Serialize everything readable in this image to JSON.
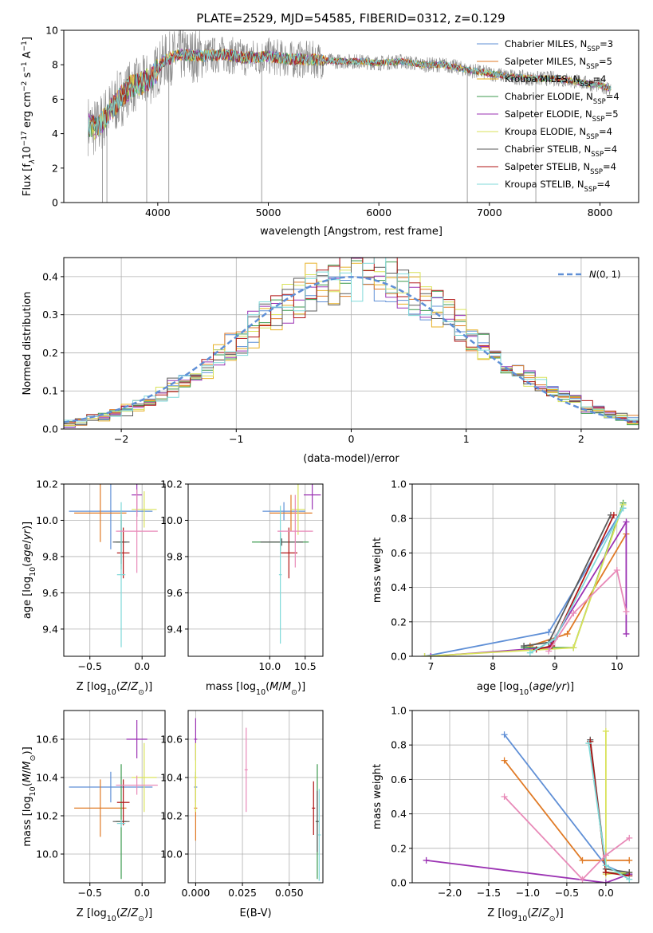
{
  "title": "PLATE=2529, MJD=54585, FIBERID=0312, z=0.129",
  "colors": {
    "chabrier_miles": "#5f8fd6",
    "salpeter_miles": "#e07a25",
    "kroupa_miles": "#e8b023",
    "chabrier_elodie": "#3d9a4f",
    "salpeter_elodie": "#9b32b3",
    "kroupa_elodie": "#d9e25a",
    "chabrier_stelib": "#5a5a5a",
    "salpeter_stelib": "#b01515",
    "kroupa_stelib": "#7fd9d9",
    "data": "#888888",
    "pink": "#e88ab8",
    "normal": "#5f8fd6"
  },
  "chart_data": [
    {
      "id": "spectrum",
      "type": "line",
      "xlabel": "wavelength [Angstrom, rest frame]",
      "ylabel": "Flux [f_λ 10^-17 erg cm^-2 s^-1 A^-1]",
      "xlim": [
        3150,
        8350
      ],
      "ylim": [
        0,
        10
      ],
      "xticks": [
        4000,
        5000,
        6000,
        7000,
        8000
      ],
      "yticks": [
        0,
        2,
        4,
        6,
        8,
        10
      ],
      "legend_position": "top-right",
      "legend": [
        {
          "base": "Chabrier MILES, N",
          "sub": "SSP",
          "tail": "=3",
          "color": "#5f8fd6"
        },
        {
          "base": "Salpeter MILES, N",
          "sub": "SSP",
          "tail": "=5",
          "color": "#e07a25"
        },
        {
          "base": "Kroupa MILES, N",
          "sub": "SSP",
          "tail": "=4",
          "color": "#e8b023"
        },
        {
          "base": "Chabrier ELODIE, N",
          "sub": "SSP",
          "tail": "=4",
          "color": "#3d9a4f"
        },
        {
          "base": "Salpeter ELODIE, N",
          "sub": "SSP",
          "tail": "=5",
          "color": "#9b32b3"
        },
        {
          "base": "Kroupa ELODIE, N",
          "sub": "SSP",
          "tail": "=4",
          "color": "#d9e25a"
        },
        {
          "base": "Chabrier STELIB, N",
          "sub": "SSP",
          "tail": "=4",
          "color": "#5a5a5a"
        },
        {
          "base": "Salpeter STELIB, N",
          "sub": "SSP",
          "tail": "=4",
          "color": "#b01515"
        },
        {
          "base": "Kroupa STELIB, N",
          "sub": "SSP",
          "tail": "=4",
          "color": "#7fd9d9"
        }
      ],
      "continuum": [
        [
          3370,
          4.5
        ],
        [
          3450,
          4.3
        ],
        [
          3550,
          5.2
        ],
        [
          3650,
          6.0
        ],
        [
          3750,
          6.7
        ],
        [
          3850,
          6.9
        ],
        [
          3950,
          7.3
        ],
        [
          4050,
          8.2
        ],
        [
          4200,
          8.6
        ],
        [
          4400,
          8.5
        ],
        [
          4600,
          8.6
        ],
        [
          4800,
          8.4
        ],
        [
          5000,
          8.5
        ],
        [
          5200,
          8.3
        ],
        [
          5400,
          8.3
        ],
        [
          5600,
          8.2
        ],
        [
          5800,
          8.2
        ],
        [
          6000,
          8.1
        ],
        [
          6200,
          8.2
        ],
        [
          6400,
          8.0
        ],
        [
          6600,
          8.0
        ],
        [
          6800,
          7.7
        ],
        [
          7000,
          7.5
        ],
        [
          7200,
          7.3
        ],
        [
          7400,
          7.2
        ],
        [
          7600,
          7.2
        ],
        [
          7800,
          7.0
        ],
        [
          8000,
          6.8
        ],
        [
          8100,
          6.6
        ]
      ]
    },
    {
      "id": "residuals",
      "type": "histogram",
      "xlabel": "(data-model)/error",
      "ylabel": "Normed distribution",
      "xlim": [
        -2.5,
        2.5
      ],
      "ylim": [
        0,
        0.45
      ],
      "xticks": [
        -2,
        -1,
        0,
        1,
        2
      ],
      "yticks": [
        0.0,
        0.1,
        0.2,
        0.3,
        0.4
      ],
      "bin_width": 0.1,
      "legend": "N(0,1)",
      "legend_position": "top-right",
      "reference_curve": "standard normal density"
    },
    {
      "id": "age_vs_Z",
      "type": "scatter",
      "xlabel": "Z [log10(Z/Z⊙)]",
      "ylabel": "age [log10(age/yr)]",
      "xlim": [
        -0.75,
        0.22
      ],
      "ylim": [
        9.25,
        10.2
      ],
      "xticks": [
        -0.5,
        0.0
      ],
      "yticks": [
        9.4,
        9.6,
        9.8,
        10.0,
        10.2
      ],
      "points": [
        {
          "x": -0.3,
          "xerr": 0.4,
          "y": 10.05,
          "yerr": 0.21,
          "color": "#5f8fd6"
        },
        {
          "x": -0.4,
          "xerr": 0.25,
          "y": 10.04,
          "yerr": 0.16,
          "color": "#e07a25"
        },
        {
          "x": -0.2,
          "xerr": 0.05,
          "y": 9.88,
          "yerr": 0.15,
          "color": "#3d9a4f"
        },
        {
          "x": -0.05,
          "xerr": 0.05,
          "y": 10.14,
          "yerr": 0.12,
          "color": "#9b32b3"
        },
        {
          "x": 0.02,
          "xerr": 0.12,
          "y": 10.06,
          "yerr": 0.1,
          "color": "#d9e25a"
        },
        {
          "x": -0.2,
          "xerr": 0.08,
          "y": 9.88,
          "yerr": 0.12,
          "color": "#5a5a5a"
        },
        {
          "x": -0.18,
          "xerr": 0.06,
          "y": 9.82,
          "yerr": 0.14,
          "color": "#b01515"
        },
        {
          "x": -0.2,
          "xerr": 0.04,
          "y": 9.7,
          "yerr": 0.4,
          "color": "#7fd9d9"
        },
        {
          "x": -0.05,
          "xerr": 0.2,
          "y": 9.94,
          "yerr": 0.23,
          "color": "#e88ab8"
        }
      ]
    },
    {
      "id": "age_vs_mass",
      "type": "scatter",
      "xlabel": "mass [log10(M/M⊙)]",
      "ylabel": "",
      "xlim": [
        8.85,
        10.75
      ],
      "ylim": [
        9.25,
        10.2
      ],
      "xticks": [
        10.0,
        10.5
      ],
      "yticks": [
        9.4,
        9.6,
        9.8,
        10.0,
        10.2
      ],
      "points": [
        {
          "x": 10.2,
          "xerr": 0.3,
          "y": 10.05,
          "yerr": 0.05,
          "color": "#5f8fd6"
        },
        {
          "x": 10.3,
          "xerr": 0.3,
          "y": 10.04,
          "yerr": 0.1,
          "color": "#e07a25"
        },
        {
          "x": 10.15,
          "xerr": 0.4,
          "y": 9.88,
          "yerr": 0.05,
          "color": "#3d9a4f"
        },
        {
          "x": 10.6,
          "xerr": 0.12,
          "y": 10.14,
          "yerr": 0.08,
          "color": "#9b32b3"
        },
        {
          "x": 10.4,
          "xerr": 0.1,
          "y": 10.06,
          "yerr": 0.14,
          "color": "#d9e25a"
        },
        {
          "x": 10.17,
          "xerr": 0.3,
          "y": 9.88,
          "yerr": 0.02,
          "color": "#5a5a5a"
        },
        {
          "x": 10.27,
          "xerr": 0.12,
          "y": 9.82,
          "yerr": 0.14,
          "color": "#b01515"
        },
        {
          "x": 10.15,
          "xerr": 0.02,
          "y": 9.7,
          "yerr": 0.38,
          "color": "#7fd9d9"
        },
        {
          "x": 10.36,
          "xerr": 0.25,
          "y": 9.94,
          "yerr": 0.2,
          "color": "#e88ab8"
        }
      ]
    },
    {
      "id": "weight_vs_age",
      "type": "line",
      "xlabel": "age [log10(age/yr)]",
      "ylabel": "mass weight",
      "xlim": [
        6.7,
        10.35
      ],
      "ylim": [
        0,
        1
      ],
      "xticks": [
        7,
        8,
        9,
        10
      ],
      "yticks": [
        0.0,
        0.2,
        0.4,
        0.6,
        0.8,
        1.0
      ],
      "series": [
        {
          "color": "#5f8fd6",
          "points": [
            [
              6.9,
              0.0
            ],
            [
              8.9,
              0.14
            ],
            [
              10.1,
              0.86
            ]
          ]
        },
        {
          "color": "#e07a25",
          "points": [
            [
              8.6,
              0.06
            ],
            [
              9.2,
              0.13
            ],
            [
              10.15,
              0.71
            ]
          ]
        },
        {
          "color": "#3d9a4f",
          "points": [
            [
              8.5,
              0.05
            ],
            [
              9.3,
              0.05
            ],
            [
              10.1,
              0.89
            ]
          ]
        },
        {
          "color": "#9b32b3",
          "points": [
            [
              7.0,
              0.0
            ],
            [
              8.9,
              0.05
            ],
            [
              10.15,
              0.78
            ],
            [
              10.15,
              0.13
            ]
          ]
        },
        {
          "color": "#d9e25a",
          "points": [
            [
              6.9,
              0.0
            ],
            [
              9.3,
              0.05
            ],
            [
              10.1,
              0.88
            ]
          ]
        },
        {
          "color": "#5a5a5a",
          "points": [
            [
              8.5,
              0.06
            ],
            [
              8.9,
              0.08
            ],
            [
              9.9,
              0.82
            ]
          ]
        },
        {
          "color": "#b01515",
          "points": [
            [
              8.7,
              0.04
            ],
            [
              8.95,
              0.06
            ],
            [
              9.95,
              0.82
            ]
          ]
        },
        {
          "color": "#7fd9d9",
          "points": [
            [
              8.6,
              0.02
            ],
            [
              9.0,
              0.1
            ],
            [
              10.1,
              0.86
            ]
          ]
        },
        {
          "color": "#e88ab8",
          "points": [
            [
              8.9,
              0.03
            ],
            [
              9.3,
              0.25
            ],
            [
              10.0,
              0.5
            ],
            [
              10.15,
              0.26
            ]
          ]
        }
      ]
    },
    {
      "id": "mass_vs_Z",
      "type": "scatter",
      "xlabel": "Z [log10(Z/Z⊙)]",
      "ylabel": "mass [log10(M/M⊙)]",
      "xlim": [
        -0.75,
        0.22
      ],
      "ylim": [
        9.85,
        10.75
      ],
      "xticks": [
        -0.5,
        0.0
      ],
      "yticks": [
        10.0,
        10.2,
        10.4,
        10.6
      ],
      "points": [
        {
          "x": -0.3,
          "xerr": 0.4,
          "y": 10.35,
          "yerr": 0.08,
          "color": "#5f8fd6"
        },
        {
          "x": -0.4,
          "xerr": 0.25,
          "y": 10.24,
          "yerr": 0.15,
          "color": "#e07a25"
        },
        {
          "x": -0.2,
          "xerr": 0.05,
          "y": 10.17,
          "yerr": 0.3,
          "color": "#3d9a4f"
        },
        {
          "x": -0.05,
          "xerr": 0.1,
          "y": 10.6,
          "yerr": 0.1,
          "color": "#9b32b3"
        },
        {
          "x": 0.02,
          "xerr": 0.12,
          "y": 10.4,
          "yerr": 0.18,
          "color": "#d9e25a"
        },
        {
          "x": -0.2,
          "xerr": 0.08,
          "y": 10.17,
          "yerr": 0.0,
          "color": "#5a5a5a"
        },
        {
          "x": -0.18,
          "xerr": 0.06,
          "y": 10.27,
          "yerr": 0.12,
          "color": "#b01515"
        },
        {
          "x": -0.2,
          "xerr": 0.04,
          "y": 10.16,
          "yerr": 0.02,
          "color": "#7fd9d9"
        },
        {
          "x": -0.05,
          "xerr": 0.2,
          "y": 10.36,
          "yerr": 0.05,
          "color": "#e88ab8"
        }
      ]
    },
    {
      "id": "mass_vs_ebv",
      "type": "scatter",
      "xlabel": "E(B-V)",
      "ylabel": "",
      "xlim": [
        -0.004,
        0.068
      ],
      "ylim": [
        9.85,
        10.75
      ],
      "xticks": [
        0.0,
        0.025,
        0.05
      ],
      "yticks": [
        10.0,
        10.2,
        10.4,
        10.6
      ],
      "points": [
        {
          "x": 0.0,
          "y": 10.35,
          "yerr": 0.08,
          "color": "#5f8fd6"
        },
        {
          "x": 0.0,
          "y": 10.24,
          "yerr": 0.17,
          "color": "#e07a25"
        },
        {
          "x": 0.065,
          "y": 10.17,
          "yerr": 0.3,
          "color": "#3d9a4f"
        },
        {
          "x": 0.0,
          "y": 10.6,
          "yerr": 0.11,
          "color": "#9b32b3"
        },
        {
          "x": 0.0,
          "y": 10.4,
          "yerr": 0.18,
          "color": "#d9e25a"
        },
        {
          "x": 0.065,
          "y": 10.17,
          "yerr": 0.16,
          "color": "#5a5a5a"
        },
        {
          "x": 0.063,
          "y": 10.24,
          "yerr": 0.14,
          "color": "#b01515"
        },
        {
          "x": 0.066,
          "y": 10.1,
          "yerr": 0.24,
          "color": "#7fd9d9"
        },
        {
          "x": 0.027,
          "y": 10.44,
          "yerr": 0.22,
          "color": "#e88ab8"
        }
      ]
    },
    {
      "id": "weight_vs_Z",
      "type": "line",
      "xlabel": "Z [log10(Z/Z⊙)]",
      "ylabel": "mass weight",
      "xlim": [
        -2.48,
        0.42
      ],
      "ylim": [
        0,
        1
      ],
      "xticks": [
        -2.0,
        -1.5,
        -1.0,
        -0.5,
        0.0
      ],
      "yticks": [
        0.0,
        0.2,
        0.4,
        0.6,
        0.8,
        1.0
      ],
      "series": [
        {
          "color": "#5f8fd6",
          "points": [
            [
              -1.3,
              0.86
            ],
            [
              0.0,
              0.1
            ],
            [
              0.3,
              0.04
            ]
          ]
        },
        {
          "color": "#e07a25",
          "points": [
            [
              -1.3,
              0.71
            ],
            [
              -0.3,
              0.13
            ],
            [
              0.3,
              0.13
            ]
          ]
        },
        {
          "color": "#3d9a4f",
          "points": [
            [
              -0.2,
              0.82
            ],
            [
              0.0,
              0.06
            ],
            [
              0.3,
              0.05
            ]
          ]
        },
        {
          "color": "#9b32b3",
          "points": [
            [
              -2.3,
              0.13
            ],
            [
              0.0,
              0.0
            ],
            [
              0.3,
              0.05
            ]
          ]
        },
        {
          "color": "#d9e25a",
          "points": [
            [
              0.0,
              0.88
            ],
            [
              0.0,
              0.05
            ],
            [
              0.3,
              0.06
            ]
          ]
        },
        {
          "color": "#5a5a5a",
          "points": [
            [
              -0.2,
              0.83
            ],
            [
              0.0,
              0.08
            ],
            [
              0.3,
              0.06
            ]
          ]
        },
        {
          "color": "#b01515",
          "points": [
            [
              -0.2,
              0.82
            ],
            [
              0.0,
              0.06
            ],
            [
              0.3,
              0.04
            ]
          ]
        },
        {
          "color": "#7fd9d9",
          "points": [
            [
              -0.22,
              0.81
            ],
            [
              0.0,
              0.1
            ],
            [
              0.3,
              0.02
            ]
          ]
        },
        {
          "color": "#e88ab8",
          "points": [
            [
              -1.3,
              0.5
            ],
            [
              -0.3,
              0.02
            ],
            [
              0.0,
              0.16
            ],
            [
              0.3,
              0.26
            ]
          ]
        }
      ]
    }
  ]
}
